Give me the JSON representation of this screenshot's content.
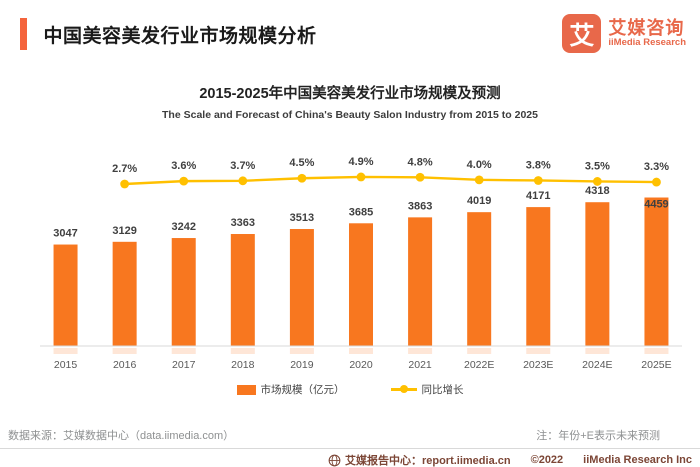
{
  "header": {
    "title": "中国美容美发行业市场规模分析"
  },
  "logo": {
    "icon_text": "艾",
    "brand_cn": "艾媒咨询",
    "brand_en": "iiMedia Research"
  },
  "chart_data": {
    "type": "bar+line",
    "title": "2015-2025年中国美容美发行业市场规模及预测",
    "subtitle": "The Scale and Forecast of China's Beauty Salon Industry from 2015 to 2025",
    "categories": [
      "2015",
      "2016",
      "2017",
      "2018",
      "2019",
      "2020",
      "2021",
      "2022E",
      "2023E",
      "2024E",
      "2025E"
    ],
    "series": [
      {
        "name": "市场规模（亿元）",
        "type": "bar",
        "color": "#F8771F",
        "values": [
          3047,
          3129,
          3242,
          3363,
          3513,
          3685,
          3863,
          4019,
          4171,
          4318,
          4459
        ]
      },
      {
        "name": "同比增长",
        "type": "line",
        "color": "#FFC000",
        "unit": "%",
        "values": [
          null,
          2.7,
          3.6,
          3.7,
          4.5,
          4.9,
          4.8,
          4.0,
          3.8,
          3.5,
          3.3
        ]
      }
    ],
    "value_labels_shown": true,
    "grid": false,
    "y_axis_hidden": true,
    "legend_position": "bottom"
  },
  "footer": {
    "source": "数据来源：艾媒数据中心（data.iimedia.com）",
    "note": "注：年份+E表示未来预测",
    "report_center": "艾媒报告中心：report.iimedia.cn",
    "copyright": "©2022",
    "company": "iiMedia Research Inc"
  },
  "colors": {
    "accent_bar": "#F4643C",
    "bar": "#F8771F",
    "line": "#FFC000",
    "brand": "#E8684A",
    "axis": "#D9D9D9"
  }
}
